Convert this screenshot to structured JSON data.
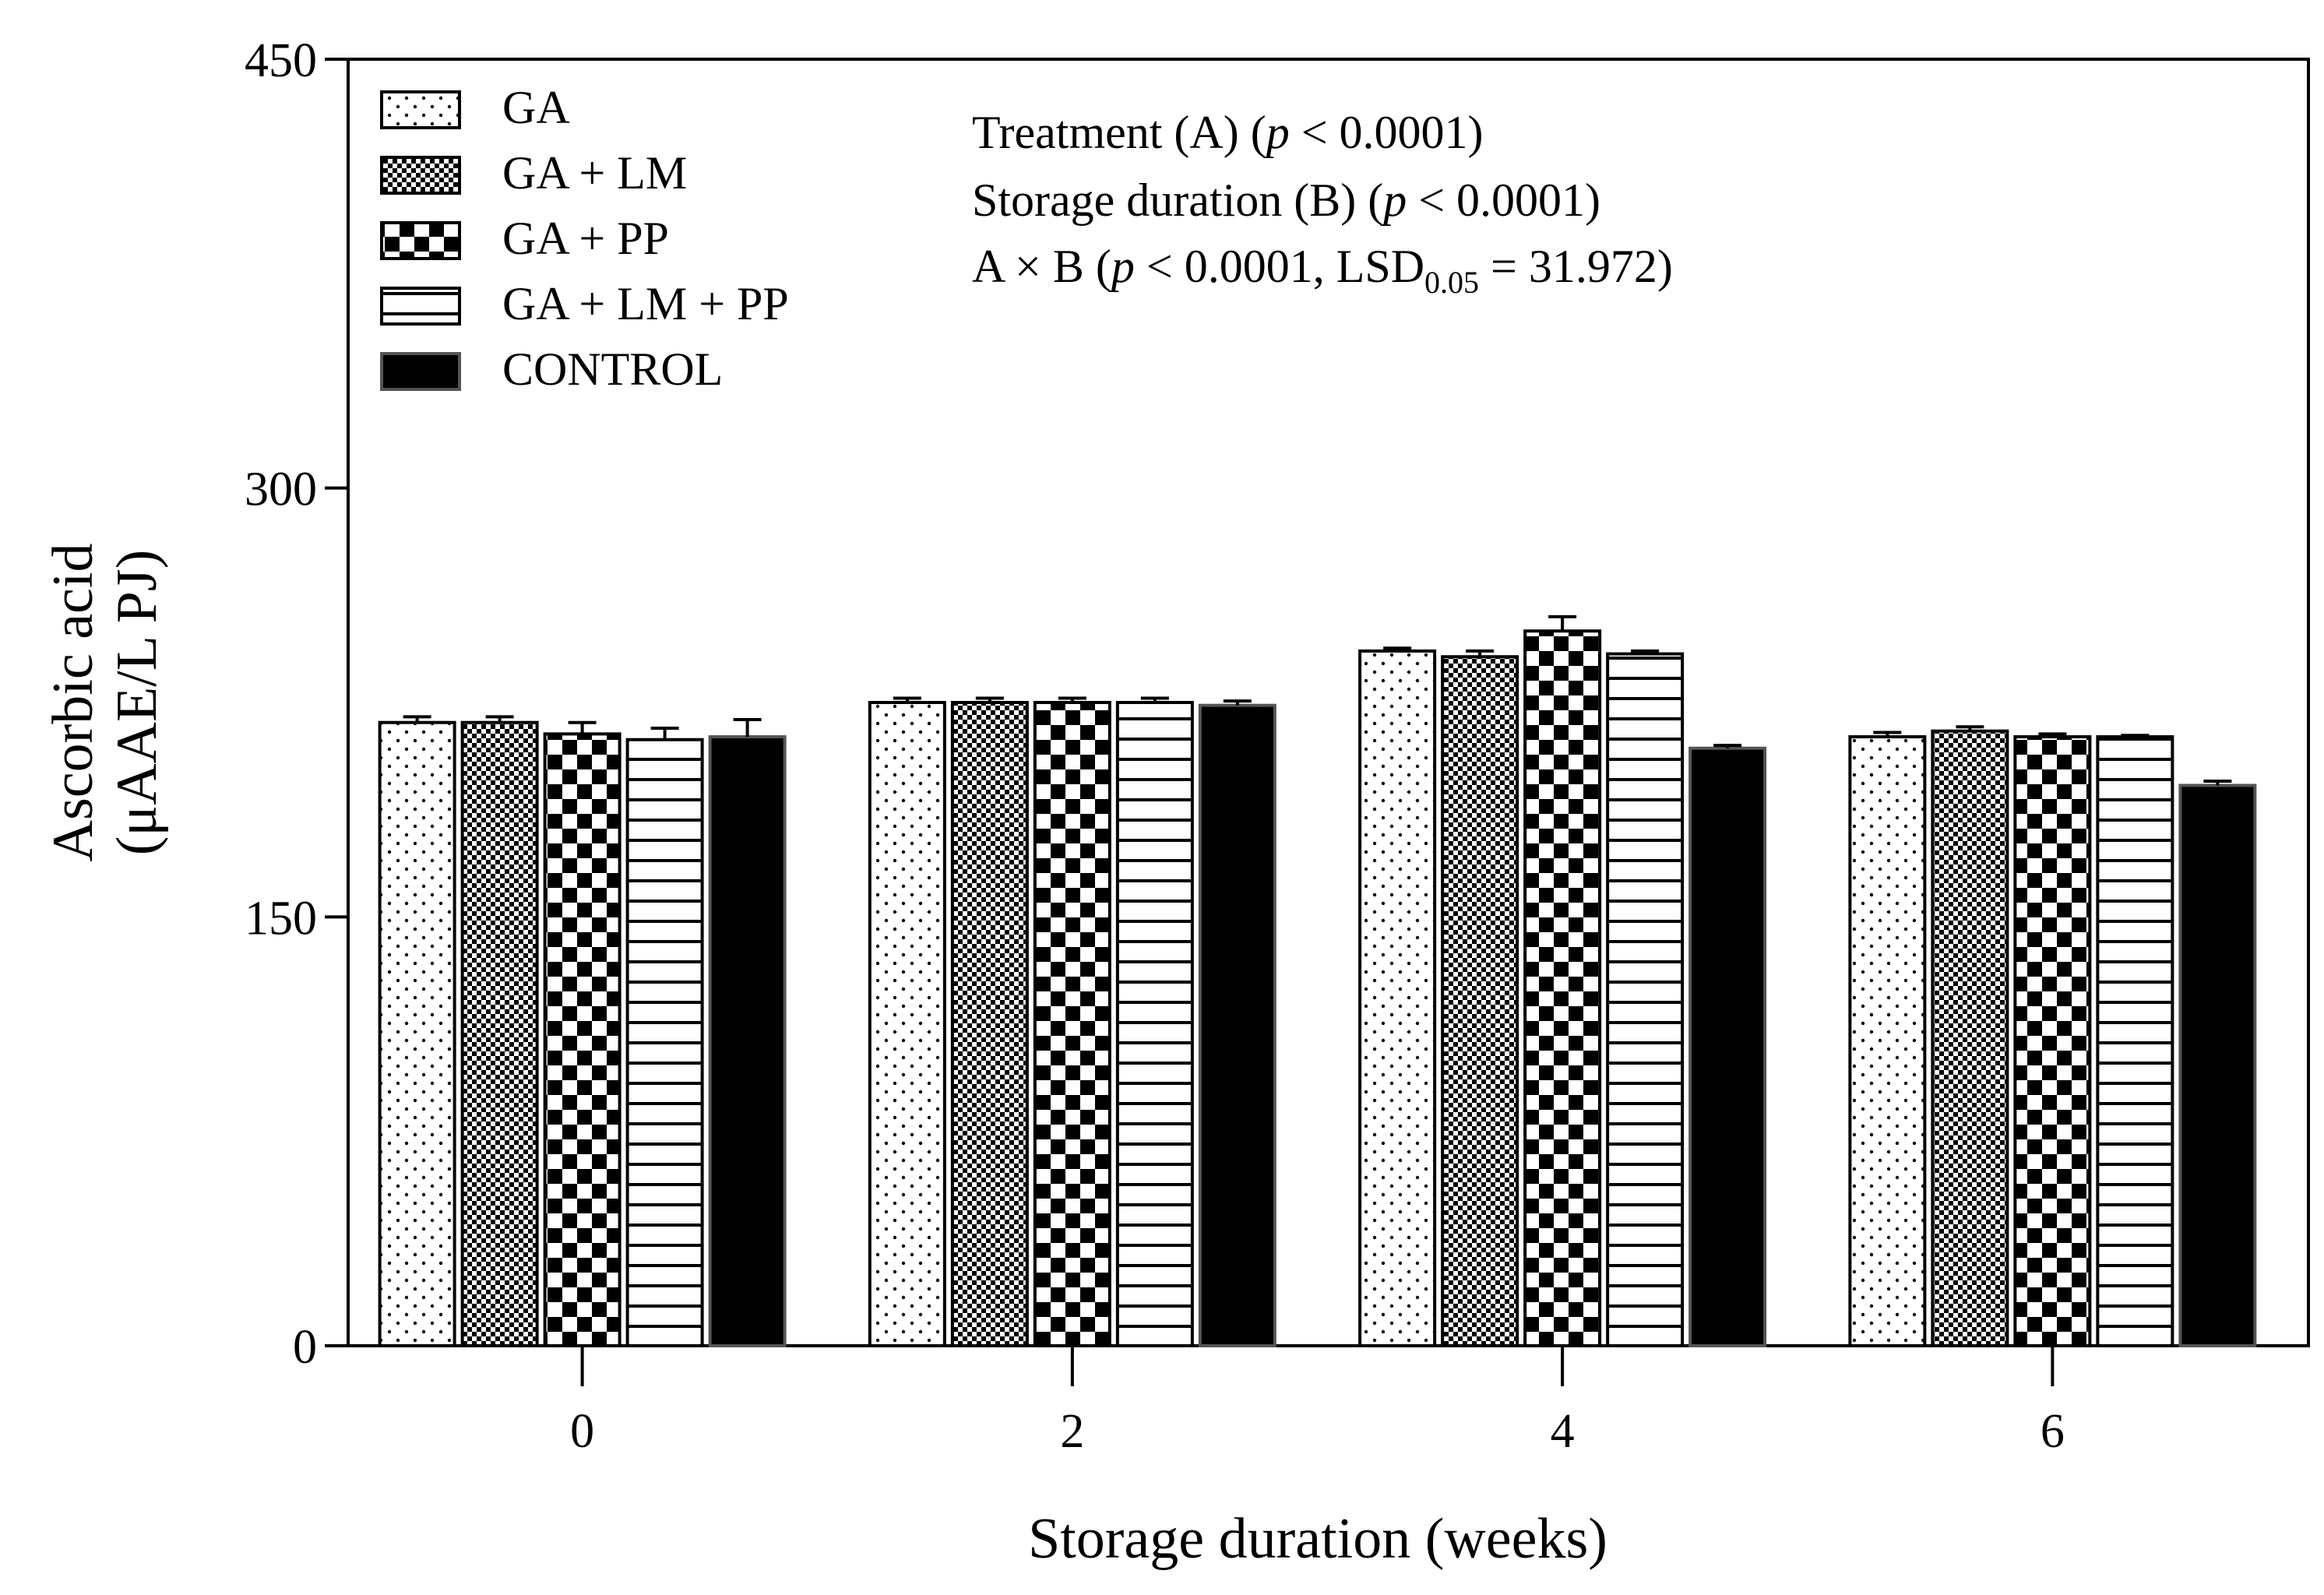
{
  "chart_data": {
    "type": "bar",
    "title": "",
    "xlabel": "Storage duration (weeks)",
    "ylabel_lines": [
      "Ascorbic acid",
      "(μAAE/L PJ)"
    ],
    "ylim": [
      0,
      450
    ],
    "yticks": [
      "0",
      "150",
      "300",
      "450"
    ],
    "categories": [
      "0",
      "2",
      "4",
      "6"
    ],
    "series": [
      {
        "name": "GA",
        "pattern": "dots",
        "values": [
          218,
          225,
          243,
          213
        ],
        "errors": [
          2,
          1.5,
          1,
          1.5
        ]
      },
      {
        "name": "GA + LM",
        "pattern": "fine-check",
        "values": [
          218,
          225,
          241,
          215
        ],
        "errors": [
          2,
          1.5,
          2,
          1.5
        ]
      },
      {
        "name": "GA + PP",
        "pattern": "coarse-check",
        "values": [
          214,
          225,
          250,
          213
        ],
        "errors": [
          4,
          1.5,
          5,
          1
        ]
      },
      {
        "name": "GA + LM + PP",
        "pattern": "hlines",
        "values": [
          212,
          225,
          242,
          213
        ],
        "errors": [
          4,
          1.5,
          1,
          0.5
        ]
      },
      {
        "name": "CONTROL",
        "pattern": "solid",
        "values": [
          213,
          224,
          209,
          196
        ],
        "errors": [
          6,
          1.5,
          1,
          1.5
        ]
      }
    ],
    "legend_position": "top-left",
    "grid": false,
    "annotations": {
      "line1": "Treatment (A) (",
      "line1_p": "p",
      "line1_rest": " < 0.0001)",
      "line2": "Storage duration (B) (",
      "line2_p": "p",
      "line2_rest": " < 0.0001)",
      "line3_a": "A × B (",
      "line3_p": "p",
      "line3_b": " < 0.0001, LSD",
      "line3_sub": "0.05",
      "line3_c": " = 31.972)"
    }
  }
}
